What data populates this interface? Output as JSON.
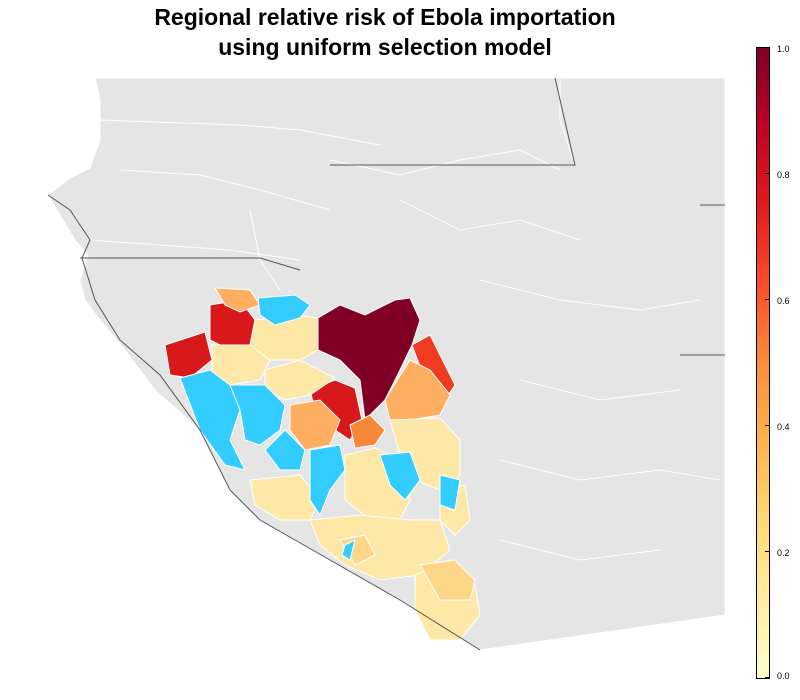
{
  "title": {
    "line1": "Regional relative risk of Ebola importation",
    "line2": "using uniform selection model"
  },
  "colors": {
    "background_land": "#e5e5e5",
    "borders": "#ffffff",
    "country_borders": "#555555",
    "highest_risk": "#800026",
    "high_risk": "#d7191c",
    "mid_risk": "#f03b20",
    "medium_risk": "#fdae61",
    "low_risk": "#fee8a8",
    "zero_risk_cyan": "#33ccff"
  },
  "colorbar": {
    "ticks": [
      "1.0",
      "0.8",
      "0.6",
      "0.4",
      "0.2",
      "0.0"
    ],
    "scale": "YlOrRd",
    "range": [
      0.0,
      1.0
    ]
  }
}
